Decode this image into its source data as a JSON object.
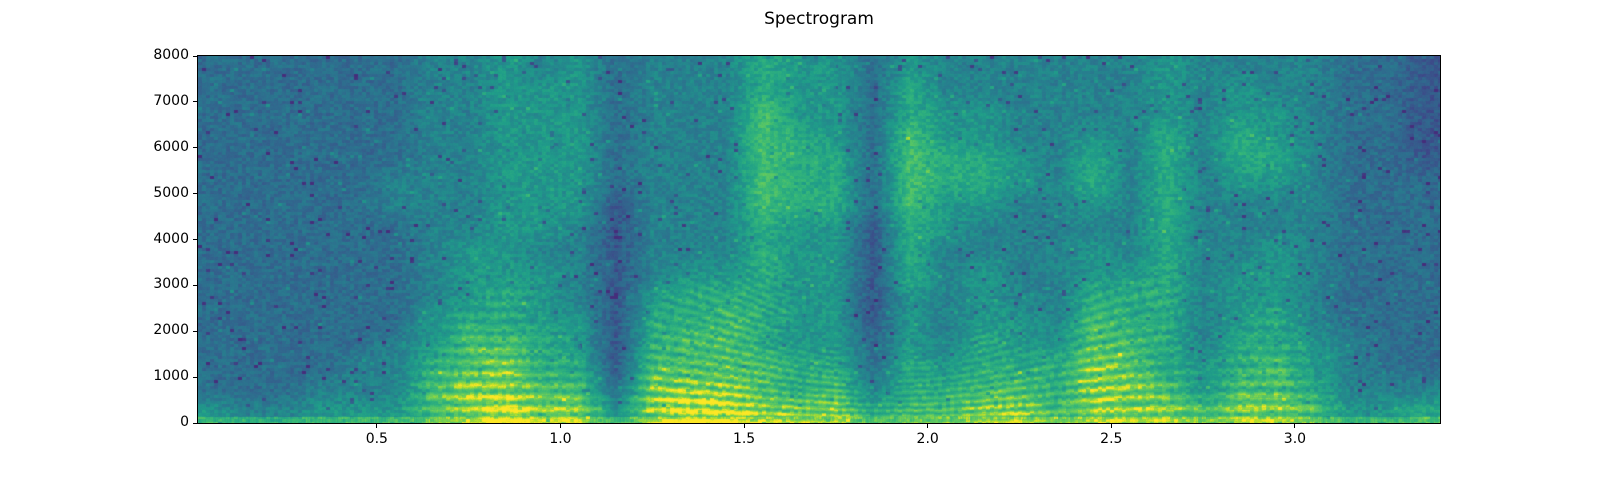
{
  "figure": {
    "background": "#ffffff",
    "text_color": "#000000",
    "frame_color": "#000000"
  },
  "chart_data": {
    "type": "heatmap",
    "subtype": "spectrogram",
    "title": "Spectrogram",
    "xlabel": "",
    "ylabel": "",
    "xlim": [
      0.013,
      3.395
    ],
    "ylim": [
      0,
      8000
    ],
    "xticks": [
      0.5,
      1.0,
      1.5,
      2.0,
      2.5,
      3.0
    ],
    "xtick_labels": [
      "0.5",
      "1.0",
      "1.5",
      "2.0",
      "2.5",
      "3.0"
    ],
    "yticks": [
      0,
      1000,
      2000,
      3000,
      4000,
      5000,
      6000,
      7000,
      8000
    ],
    "ytick_labels": [
      "0",
      "1000",
      "2000",
      "3000",
      "4000",
      "5000",
      "6000",
      "7000",
      "8000"
    ],
    "grid_lines": false,
    "legend": false,
    "colormap": "viridis",
    "colormap_stops": [
      [
        0.0,
        "#440154"
      ],
      [
        0.125,
        "#482878"
      ],
      [
        0.25,
        "#3e4989"
      ],
      [
        0.375,
        "#31688e"
      ],
      [
        0.5,
        "#26828e"
      ],
      [
        0.625,
        "#1f9e89"
      ],
      [
        0.75,
        "#35b779"
      ],
      [
        0.875,
        "#6ece58"
      ],
      [
        0.9375,
        "#b5de2b"
      ],
      [
        1.0,
        "#fde725"
      ]
    ],
    "intensity_grid": {
      "description": "estimated relative power 0-9, columns are 0.1s time steps, rows are 500Hz bands from 0Hz (first) to 8000Hz (last)",
      "t_start": 0.05,
      "t_step": 0.1,
      "f_start": 250,
      "f_step": 500,
      "scale": [
        0,
        9
      ],
      "columns": [
        [
          5,
          3,
          3,
          3,
          3,
          3,
          3,
          3,
          3,
          3,
          3,
          3,
          3,
          3,
          3,
          3
        ],
        [
          4,
          3,
          3,
          3,
          3,
          3,
          3,
          3,
          3,
          3,
          3,
          3,
          3,
          3,
          3,
          3
        ],
        [
          4,
          3,
          3,
          3,
          3,
          3,
          3,
          3,
          3,
          3,
          3,
          3,
          3,
          3,
          3,
          3
        ],
        [
          5,
          4,
          3,
          3,
          3,
          3,
          3,
          3,
          3,
          3,
          3,
          3,
          3,
          3,
          3,
          3
        ],
        [
          5,
          4,
          4,
          3,
          3,
          3,
          3,
          3,
          3,
          3,
          3,
          3,
          3,
          3,
          3,
          3
        ],
        [
          5,
          4,
          4,
          4,
          3,
          3,
          3,
          3,
          3,
          4,
          4,
          3,
          3,
          3,
          3,
          3
        ],
        [
          7,
          7,
          6,
          5,
          5,
          4,
          4,
          4,
          4,
          4,
          4,
          4,
          4,
          4,
          4,
          4
        ],
        [
          8,
          8,
          7,
          7,
          6,
          5,
          5,
          5,
          4,
          4,
          4,
          4,
          4,
          4,
          4,
          4
        ],
        [
          9,
          8,
          8,
          7,
          6,
          6,
          5,
          5,
          5,
          5,
          5,
          5,
          5,
          5,
          5,
          5
        ],
        [
          8,
          7,
          6,
          6,
          5,
          5,
          5,
          4,
          5,
          5,
          5,
          5,
          5,
          5,
          5,
          4
        ],
        [
          8,
          7,
          6,
          5,
          5,
          4,
          4,
          4,
          4,
          5,
          5,
          5,
          5,
          5,
          5,
          5
        ],
        [
          5,
          3,
          2,
          2,
          2,
          2,
          2,
          2,
          2,
          2,
          3,
          3,
          3,
          3,
          3,
          3
        ],
        [
          8,
          8,
          7,
          6,
          6,
          5,
          4,
          4,
          4,
          4,
          4,
          4,
          4,
          4,
          4,
          4
        ],
        [
          9,
          8,
          7,
          7,
          6,
          6,
          5,
          4,
          4,
          4,
          4,
          4,
          4,
          4,
          4,
          4
        ],
        [
          9,
          8,
          7,
          7,
          7,
          6,
          5,
          4,
          4,
          4,
          4,
          4,
          4,
          4,
          4,
          4
        ],
        [
          8,
          7,
          7,
          6,
          6,
          6,
          6,
          6,
          6,
          7,
          7,
          7,
          7,
          7,
          6,
          6
        ],
        [
          8,
          6,
          6,
          5,
          5,
          5,
          5,
          5,
          5,
          6,
          6,
          6,
          6,
          5,
          5,
          5
        ],
        [
          8,
          7,
          6,
          5,
          5,
          5,
          5,
          5,
          5,
          6,
          6,
          6,
          5,
          5,
          5,
          5
        ],
        [
          6,
          4,
          3,
          3,
          2,
          2,
          2,
          2,
          2,
          3,
          3,
          3,
          3,
          3,
          3,
          3
        ],
        [
          7,
          6,
          6,
          5,
          5,
          5,
          6,
          6,
          6,
          7,
          7,
          7,
          7,
          6,
          6,
          5
        ],
        [
          7,
          6,
          5,
          4,
          4,
          4,
          4,
          4,
          5,
          5,
          6,
          6,
          5,
          5,
          4,
          4
        ],
        [
          8,
          7,
          6,
          6,
          5,
          5,
          5,
          4,
          4,
          5,
          6,
          6,
          5,
          5,
          4,
          4
        ],
        [
          8,
          7,
          6,
          5,
          5,
          4,
          4,
          4,
          4,
          4,
          5,
          5,
          4,
          4,
          4,
          4
        ],
        [
          7,
          6,
          6,
          5,
          4,
          4,
          4,
          4,
          4,
          4,
          4,
          4,
          4,
          4,
          4,
          4
        ],
        [
          8,
          8,
          8,
          7,
          7,
          6,
          5,
          5,
          4,
          5,
          6,
          6,
          5,
          4,
          4,
          4
        ],
        [
          8,
          8,
          7,
          7,
          6,
          6,
          5,
          4,
          4,
          4,
          4,
          4,
          4,
          4,
          4,
          4
        ],
        [
          8,
          7,
          6,
          6,
          6,
          6,
          6,
          6,
          6,
          6,
          6,
          6,
          6,
          5,
          5,
          5
        ],
        [
          7,
          5,
          5,
          4,
          4,
          4,
          4,
          4,
          4,
          4,
          4,
          4,
          4,
          4,
          4,
          4
        ],
        [
          8,
          7,
          6,
          6,
          5,
          5,
          5,
          4,
          4,
          4,
          5,
          6,
          6,
          5,
          5,
          4
        ],
        [
          8,
          7,
          7,
          6,
          6,
          5,
          5,
          5,
          4,
          4,
          5,
          6,
          5,
          5,
          4,
          4
        ],
        [
          7,
          6,
          5,
          5,
          4,
          4,
          4,
          4,
          4,
          4,
          4,
          4,
          4,
          4,
          4,
          4
        ],
        [
          5,
          4,
          4,
          4,
          3,
          3,
          3,
          3,
          3,
          3,
          3,
          3,
          3,
          3,
          3,
          3
        ],
        [
          5,
          4,
          3,
          3,
          3,
          3,
          3,
          3,
          3,
          3,
          3,
          3,
          3,
          3,
          3,
          3
        ],
        [
          6,
          4,
          3,
          3,
          3,
          3,
          3,
          3,
          3,
          3,
          3,
          2,
          2,
          2,
          2,
          2
        ]
      ]
    },
    "bottom_edge_band": {
      "f_max": 150,
      "base_intensity": 4.2,
      "gain": 0.5
    }
  }
}
